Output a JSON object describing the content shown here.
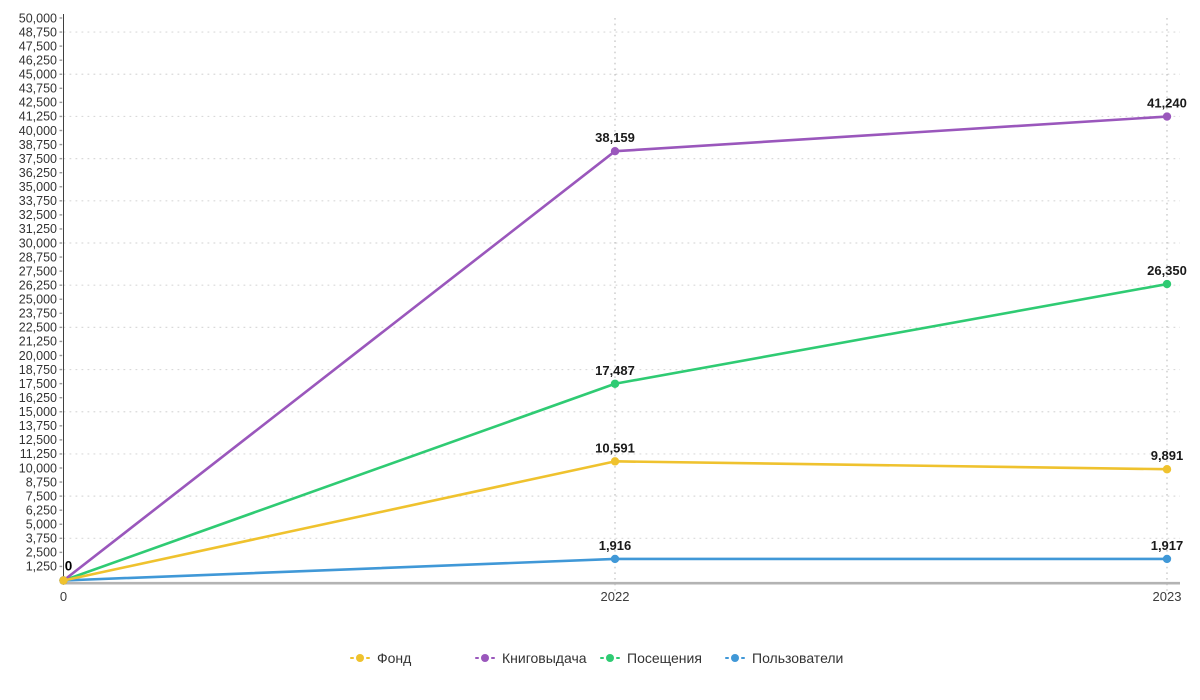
{
  "chart_data": {
    "type": "line",
    "categories": [
      "0",
      "2022",
      "2023"
    ],
    "series": [
      {
        "id": "fund",
        "name": "Фонд",
        "color": "#EFC22E",
        "values": [
          0,
          10591,
          9891
        ]
      },
      {
        "id": "book-lending",
        "name": "Книговыдача",
        "color": "#9A57BC",
        "values": [
          0,
          38159,
          41240
        ]
      },
      {
        "id": "visits",
        "name": "Посещения",
        "color": "#2FCB73",
        "values": [
          0,
          17487,
          26350
        ]
      },
      {
        "id": "users",
        "name": "Пользователи",
        "color": "#4098D7",
        "values": [
          0,
          1916,
          1917
        ]
      }
    ],
    "point_labels_shown": true,
    "origin_label": "0",
    "y_axis": {
      "min": 0,
      "max": 50000,
      "tick_interval": 1250,
      "grid_interval": 3750,
      "tick_format": "thousands-comma"
    },
    "x_axis": {
      "labels": [
        "0",
        "2022",
        "2023"
      ]
    },
    "legend_position": "bottom-center",
    "grid": true,
    "colors": {
      "x_axis_line": "#b3b3b3",
      "y_axis_line": "#3f3f3f",
      "h_gridline": "#d9d9d9",
      "v_gridline": "#bdbdbd",
      "tick_mark": "#9a9a9a",
      "point_label": "#1a1a1a"
    }
  }
}
